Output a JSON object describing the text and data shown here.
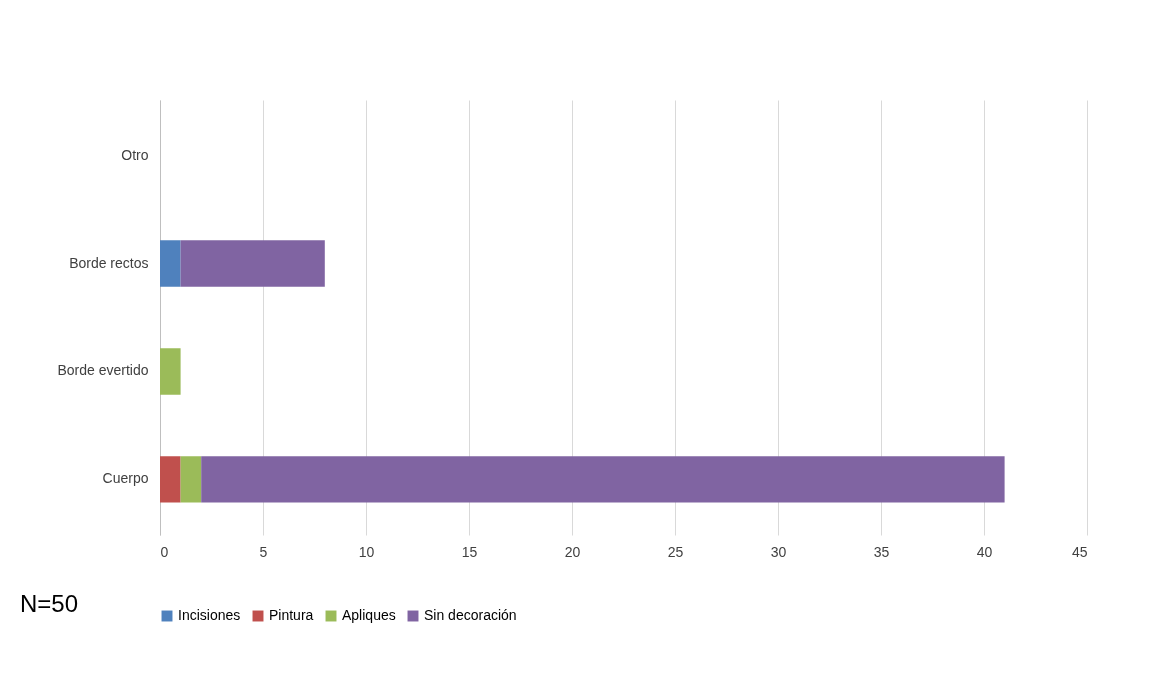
{
  "chart_data": {
    "type": "bar",
    "orientation": "horizontal",
    "stacked": true,
    "categories": [
      "Otro",
      "Borde rectos",
      "Borde evertido",
      "Cuerpo"
    ],
    "series": [
      {
        "name": "Incisiones",
        "color": "#4f81bd",
        "values": [
          null,
          1,
          null,
          null
        ]
      },
      {
        "name": "Pintura",
        "color": "#c0504d",
        "values": [
          null,
          null,
          null,
          1
        ]
      },
      {
        "name": "Apliques",
        "color": "#9bbb59",
        "values": [
          null,
          null,
          1,
          1
        ]
      },
      {
        "name": "Sin decoración",
        "color": "#8064a2",
        "values": [
          null,
          7,
          null,
          39
        ]
      }
    ],
    "xlim": [
      0,
      45
    ],
    "xticks": [
      0,
      5,
      10,
      15,
      20,
      25,
      30,
      35,
      40,
      45
    ],
    "grid": "x",
    "legend": "bottom",
    "annotations": [
      "N=50"
    ]
  }
}
